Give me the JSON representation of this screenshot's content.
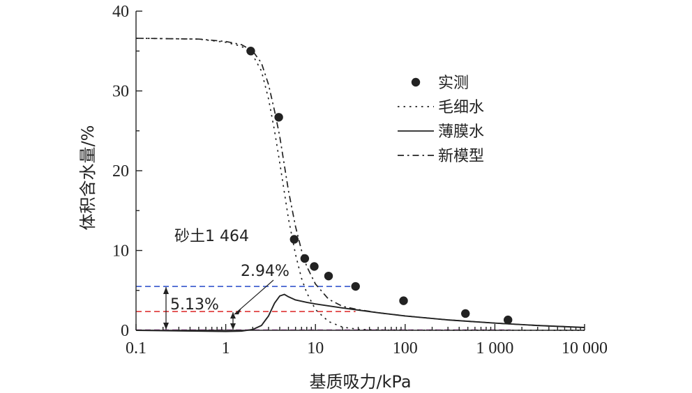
{
  "chart_data": {
    "type": "line",
    "xscale": "log",
    "xlim": [
      0.1,
      10000
    ],
    "ylim": [
      0,
      40
    ],
    "xlabel": "基质吸力/kPa",
    "ylabel": "体积含水量/%",
    "xticks": [
      {
        "value": 0.1,
        "label": "0.1"
      },
      {
        "value": 1,
        "label": "1"
      },
      {
        "value": 10,
        "label": "10"
      },
      {
        "value": 100,
        "label": "100"
      },
      {
        "value": 1000,
        "label": "1 000"
      },
      {
        "value": 10000,
        "label": "10 000"
      }
    ],
    "yticks": [
      {
        "value": 0,
        "label": "0"
      },
      {
        "value": 10,
        "label": "10"
      },
      {
        "value": 20,
        "label": "20"
      },
      {
        "value": 30,
        "label": "30"
      },
      {
        "value": 40,
        "label": "40"
      }
    ],
    "legend": {
      "placement": "top-right",
      "items": [
        {
          "name": "实测",
          "style": "marker"
        },
        {
          "name": "毛细水",
          "style": "dotted"
        },
        {
          "name": "薄膜水",
          "style": "solid"
        },
        {
          "name": "新模型",
          "style": "dashdot"
        }
      ]
    },
    "series": [
      {
        "name": "实测",
        "style": "marker",
        "points": [
          [
            1.9,
            35.0
          ],
          [
            3.9,
            26.7
          ],
          [
            5.8,
            11.4
          ],
          [
            7.6,
            9.0
          ],
          [
            9.7,
            8.0
          ],
          [
            14.0,
            6.8
          ],
          [
            28.0,
            5.5
          ],
          [
            96.0,
            3.7
          ],
          [
            470.0,
            2.1
          ],
          [
            1400.0,
            1.3
          ]
        ]
      },
      {
        "name": "毛细水",
        "style": "dotted",
        "points": [
          [
            0.1,
            36.6
          ],
          [
            0.5,
            36.5
          ],
          [
            1.0,
            36.1
          ],
          [
            1.5,
            35.6
          ],
          [
            2.0,
            34.5
          ],
          [
            2.5,
            32.5
          ],
          [
            3.0,
            29.0
          ],
          [
            3.5,
            25.0
          ],
          [
            4.0,
            21.0
          ],
          [
            5.0,
            14.0
          ],
          [
            6.0,
            9.5
          ],
          [
            7.0,
            6.5
          ],
          [
            8.0,
            4.7
          ],
          [
            10.0,
            2.6
          ],
          [
            14.0,
            1.1
          ],
          [
            20.0,
            0.4
          ],
          [
            30.0,
            0.12
          ],
          [
            60.0,
            0.02
          ],
          [
            10000.0,
            0.0
          ]
        ]
      },
      {
        "name": "薄膜水",
        "style": "solid",
        "points": [
          [
            0.1,
            0.0
          ],
          [
            0.5,
            -0.1
          ],
          [
            1.0,
            -0.15
          ],
          [
            1.5,
            -0.1
          ],
          [
            2.0,
            0.1
          ],
          [
            2.5,
            0.6
          ],
          [
            3.0,
            1.8
          ],
          [
            3.5,
            3.4
          ],
          [
            4.0,
            4.3
          ],
          [
            4.5,
            4.5
          ],
          [
            5.0,
            4.2
          ],
          [
            6.0,
            3.8
          ],
          [
            8.0,
            3.5
          ],
          [
            10.0,
            3.3
          ],
          [
            20.0,
            2.8
          ],
          [
            50.0,
            2.2
          ],
          [
            100.0,
            1.8
          ],
          [
            300.0,
            1.3
          ],
          [
            1000.0,
            0.9
          ],
          [
            3000.0,
            0.6
          ],
          [
            10000.0,
            0.35
          ]
        ]
      },
      {
        "name": "新模型",
        "style": "dashdot",
        "points": [
          [
            0.1,
            36.6
          ],
          [
            0.5,
            36.5
          ],
          [
            1.0,
            36.2
          ],
          [
            1.5,
            35.8
          ],
          [
            2.0,
            35.0
          ],
          [
            2.5,
            33.5
          ],
          [
            3.0,
            30.8
          ],
          [
            3.5,
            27.5
          ],
          [
            4.0,
            24.3
          ],
          [
            5.0,
            17.5
          ],
          [
            6.0,
            13.0
          ],
          [
            7.0,
            10.0
          ],
          [
            8.0,
            8.0
          ],
          [
            10.0,
            5.8
          ],
          [
            14.0,
            3.9
          ],
          [
            20.0,
            3.0
          ],
          [
            30.0,
            2.6
          ],
          [
            50.0,
            2.2
          ],
          [
            100.0,
            1.8
          ],
          [
            300.0,
            1.3
          ],
          [
            1000.0,
            0.9
          ],
          [
            3000.0,
            0.6
          ],
          [
            10000.0,
            0.35
          ]
        ]
      }
    ],
    "reference_lines": [
      {
        "y": 5.5,
        "x_from": 0.1,
        "x_to": 28,
        "color": "#3355cc",
        "style": "dashed"
      },
      {
        "y": 2.35,
        "x_from": 0.1,
        "x_to": 28,
        "color": "#dd3333",
        "style": "dashed"
      },
      {
        "y": 0.05,
        "x_from": 0.1,
        "x_to": 1500,
        "color": "#bb66bb",
        "style": "dashed"
      }
    ],
    "colors": {
      "blue_line": "#3355cc",
      "red_line": "#dd3333",
      "purple_line": "#bb66bb"
    },
    "annotations": {
      "sample_label": "砂土1 464",
      "peak_label": "2.94%",
      "range_label": "5.13%"
    }
  }
}
